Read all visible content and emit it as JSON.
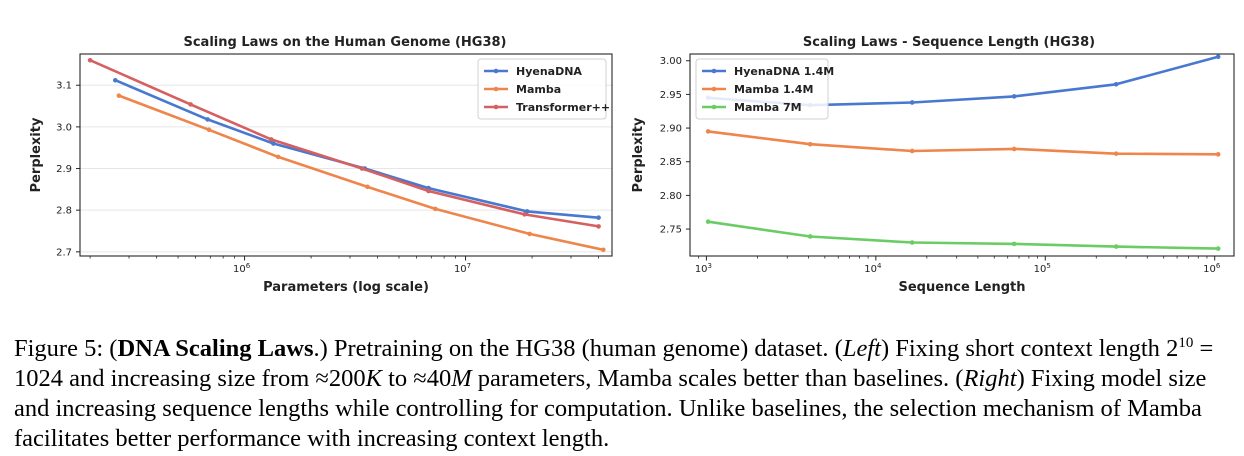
{
  "chart_data": [
    {
      "type": "line",
      "title": "Scaling Laws on the Human Genome (HG38)",
      "xlabel": "Parameters (log scale)",
      "ylabel": "Perplexity",
      "xscale": "log",
      "xlim": [
        180000,
        46000000
      ],
      "ylim": [
        2.69,
        3.175
      ],
      "xticks": [
        {
          "value": 1000000,
          "base": "10",
          "exp": "6"
        },
        {
          "value": 10000000,
          "base": "10",
          "exp": "7"
        }
      ],
      "yticks": [
        {
          "value": 2.7,
          "label": "2.7"
        },
        {
          "value": 2.8,
          "label": "2.8"
        },
        {
          "value": 2.9,
          "label": "2.9"
        },
        {
          "value": 3.0,
          "label": "3.0"
        },
        {
          "value": 3.1,
          "label": "3.1"
        }
      ],
      "grid": true,
      "legend_position": "top-right",
      "series": [
        {
          "name": "HyenaDNA",
          "color": "#4878cf",
          "points": [
            [
              260000,
              3.112
            ],
            [
              680000,
              3.018
            ],
            [
              1350000,
              2.96
            ],
            [
              3500000,
              2.9
            ],
            [
              6800000,
              2.853
            ],
            [
              19000000,
              2.797
            ],
            [
              40000000,
              2.782
            ]
          ]
        },
        {
          "name": "Mamba",
          "color": "#ee854a",
          "points": [
            [
              270000,
              3.075
            ],
            [
              690000,
              2.993
            ],
            [
              1420000,
              2.928
            ],
            [
              3600000,
              2.856
            ],
            [
              7300000,
              2.803
            ],
            [
              19500000,
              2.743
            ],
            [
              42000000,
              2.705
            ]
          ]
        },
        {
          "name": "Transformer++",
          "color": "#d65f5f",
          "points": [
            [
              200000,
              3.16
            ],
            [
              570000,
              3.054
            ],
            [
              1320000,
              2.97
            ],
            [
              3400000,
              2.9
            ],
            [
              6800000,
              2.846
            ],
            [
              18500000,
              2.79
            ],
            [
              40000000,
              2.761
            ]
          ]
        }
      ]
    },
    {
      "type": "line",
      "title": "Scaling Laws - Sequence Length (HG38)",
      "xlabel": "Sequence Length",
      "ylabel": "Perplexity",
      "xscale": "log",
      "xlim": [
        800,
        1300000
      ],
      "ylim": [
        2.71,
        3.01
      ],
      "xticks": [
        {
          "value": 1000,
          "base": "10",
          "exp": "3"
        },
        {
          "value": 10000,
          "base": "10",
          "exp": "4"
        },
        {
          "value": 100000,
          "base": "10",
          "exp": "5"
        },
        {
          "value": 1000000,
          "base": "10",
          "exp": "6"
        }
      ],
      "yticks": [
        {
          "value": 2.75,
          "label": "2.75"
        },
        {
          "value": 2.8,
          "label": "2.80"
        },
        {
          "value": 2.85,
          "label": "2.85"
        },
        {
          "value": 2.9,
          "label": "2.90"
        },
        {
          "value": 2.95,
          "label": "2.95"
        },
        {
          "value": 3.0,
          "label": "3.00"
        }
      ],
      "grid": false,
      "legend_position": "top-left",
      "series": [
        {
          "name": "HyenaDNA 1.4M",
          "color": "#4878cf",
          "points": [
            [
              1024,
              2.945
            ],
            [
              4096,
              2.934
            ],
            [
              16384,
              2.938
            ],
            [
              65536,
              2.947
            ],
            [
              262144,
              2.965
            ],
            [
              1048576,
              3.006
            ]
          ]
        },
        {
          "name": "Mamba 1.4M",
          "color": "#ee854a",
          "points": [
            [
              1024,
              2.895
            ],
            [
              4096,
              2.876
            ],
            [
              16384,
              2.866
            ],
            [
              65536,
              2.869
            ],
            [
              262144,
              2.862
            ],
            [
              1048576,
              2.861
            ]
          ]
        },
        {
          "name": "Mamba 7M",
          "color": "#6acc64",
          "points": [
            [
              1024,
              2.761
            ],
            [
              4096,
              2.739
            ],
            [
              16384,
              2.73
            ],
            [
              65536,
              2.728
            ],
            [
              262144,
              2.724
            ],
            [
              1048576,
              2.721
            ]
          ]
        }
      ]
    }
  ],
  "caption": {
    "prefix": "Figure 5: (",
    "bold": "DNA Scaling Laws",
    "part1": ".) Pretraining on the HG38 (human genome) dataset. (",
    "left_label": "Left",
    "part2": ") Fixing short context length ",
    "math1": "2",
    "math1_exp": "10",
    "part3": " = 1024 and increasing size from ≈200",
    "math_k": "K",
    "part4": " to ≈40",
    "math_m": "M",
    "part5": " parameters, Mamba scales better than baselines. (",
    "right_label": "Right",
    "part6": ") Fixing model size and increasing sequence lengths while controlling for computation. Unlike baselines, the selection mechanism of Mamba facilitates better performance with increasing context length."
  }
}
